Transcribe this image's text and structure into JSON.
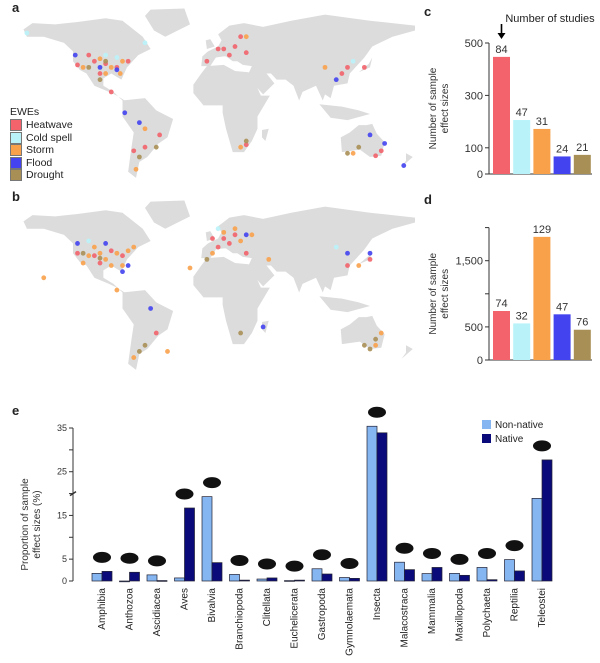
{
  "panels": {
    "a": "a",
    "b": "b",
    "c": "c",
    "d": "d",
    "e": "e"
  },
  "colors": {
    "Heatwave": "#f2636b",
    "Cold spell": "#b9f3f9",
    "Storm": "#f9a14a",
    "Flood": "#4343f0",
    "Drought": "#a88f55",
    "land": "#dcdcdc",
    "Non-native": "#86b6f2",
    "Native": "#0a0a7a"
  },
  "map_legend": {
    "title": "EWEs",
    "items": [
      "Heatwave",
      "Cold spell",
      "Storm",
      "Flood",
      "Drought"
    ]
  },
  "map_a_points": {
    "Heatwave": [
      [
        -120,
        37
      ],
      [
        -105,
        40
      ],
      [
        -95,
        38
      ],
      [
        -85,
        35
      ],
      [
        -75,
        40
      ],
      [
        -110,
        45
      ],
      [
        -100,
        30
      ],
      [
        10,
        50
      ],
      [
        15,
        45
      ],
      [
        -5,
        40
      ],
      [
        25,
        60
      ],
      [
        20,
        52
      ],
      [
        30,
        47
      ],
      [
        120,
        35
      ],
      [
        115,
        30
      ],
      [
        -60,
        -30
      ],
      [
        -47,
        -20
      ],
      [
        150,
        -33
      ],
      [
        145,
        -37
      ],
      [
        30,
        -28
      ],
      [
        -70,
        -33
      ],
      [
        5,
        50
      ],
      [
        135,
        35
      ],
      [
        -90,
        15
      ]
    ],
    "Cold spell": [
      [
        -165,
        63
      ],
      [
        -85,
        43
      ],
      [
        -95,
        45
      ],
      [
        125,
        40
      ],
      [
        -60,
        55
      ]
    ],
    "Storm": [
      [
        -90,
        35
      ],
      [
        -82,
        30
      ],
      [
        -95,
        30
      ],
      [
        -80,
        40
      ],
      [
        -115,
        35
      ],
      [
        -100,
        42
      ],
      [
        -60,
        -15
      ],
      [
        25,
        -30
      ],
      [
        30,
        60
      ],
      [
        125,
        -35
      ],
      [
        -68,
        -48
      ],
      [
        100,
        35
      ]
    ],
    "Flood": [
      [
        -78,
        -2
      ],
      [
        -85,
        33
      ],
      [
        -100,
        35
      ],
      [
        -65,
        -10
      ],
      [
        153,
        -27
      ],
      [
        170,
        -45
      ],
      [
        -122,
        45
      ],
      [
        140,
        -20
      ],
      [
        110,
        25
      ]
    ],
    "Drought": [
      [
        -110,
        35
      ],
      [
        -95,
        40
      ],
      [
        -65,
        -38
      ],
      [
        130,
        -30
      ],
      [
        120,
        -35
      ],
      [
        -50,
        -30
      ],
      [
        30,
        -25
      ],
      [
        -100,
        25
      ]
    ]
  },
  "map_b_points": {
    "Heatwave": [
      [
        -120,
        40
      ],
      [
        -105,
        38
      ],
      [
        -90,
        42
      ],
      [
        -80,
        38
      ],
      [
        10,
        52
      ],
      [
        20,
        55
      ],
      [
        15,
        48
      ],
      [
        5,
        45
      ],
      [
        30,
        40
      ],
      [
        140,
        35
      ],
      [
        -50,
        -25
      ],
      [
        120,
        30
      ],
      [
        0,
        52
      ],
      [
        -100,
        32
      ]
    ],
    "Cold spell": [
      [
        -110,
        50
      ],
      [
        5,
        60
      ],
      [
        110,
        45
      ]
    ],
    "Storm": [
      [
        -95,
        35
      ],
      [
        -85,
        40
      ],
      [
        -100,
        40
      ],
      [
        -110,
        38
      ],
      [
        -90,
        30
      ],
      [
        -80,
        30
      ],
      [
        -75,
        42
      ],
      [
        -70,
        45
      ],
      [
        10,
        57
      ],
      [
        20,
        60
      ],
      [
        25,
        50
      ],
      [
        -20,
        28
      ],
      [
        -150,
        20
      ],
      [
        -40,
        -40
      ],
      [
        -70,
        -45
      ],
      [
        145,
        -35
      ],
      [
        150,
        -25
      ],
      [
        -85,
        10
      ],
      [
        0,
        40
      ],
      [
        35,
        55
      ],
      [
        130,
        30
      ],
      [
        -115,
        32
      ],
      [
        -105,
        45
      ],
      [
        50,
        35
      ]
    ],
    "Flood": [
      [
        -120,
        48
      ],
      [
        -95,
        48
      ],
      [
        -75,
        30
      ],
      [
        30,
        55
      ],
      [
        120,
        40
      ],
      [
        140,
        40
      ],
      [
        45,
        -20
      ],
      [
        -55,
        -5
      ],
      [
        -80,
        25
      ]
    ],
    "Drought": [
      [
        -115,
        40
      ],
      [
        -100,
        36
      ],
      [
        -60,
        -35
      ],
      [
        145,
        -30
      ],
      [
        135,
        -35
      ],
      [
        25,
        -25
      ],
      [
        -5,
        35
      ],
      [
        -65,
        -40
      ],
      [
        140,
        -38
      ]
    ]
  },
  "chart_data": [
    {
      "id": "c",
      "type": "bar",
      "annotation": "Number of studies",
      "ylabel": "Number of sample effect sizes",
      "ylim": [
        0,
        500
      ],
      "yticks": [
        0,
        100,
        300,
        500
      ],
      "categories": [
        "Heatwave",
        "Cold spell",
        "Storm",
        "Flood",
        "Drought"
      ],
      "values": [
        447,
        206,
        172,
        67,
        73
      ],
      "data_labels": [
        "84",
        "47",
        "31",
        "24",
        "21"
      ]
    },
    {
      "id": "d",
      "type": "bar",
      "ylabel": "Number of sample effect sizes",
      "ylim": [
        0,
        2000
      ],
      "yticks": [
        0,
        500,
        1000,
        1500,
        2000
      ],
      "ytick_labels": [
        "0",
        "500",
        "",
        "1,500",
        ""
      ],
      "categories": [
        "Heatwave",
        "Cold spell",
        "Storm",
        "Flood",
        "Drought"
      ],
      "values": [
        740,
        553,
        1860,
        690,
        457
      ],
      "data_labels": [
        "74",
        "32",
        "129",
        "47",
        "76"
      ]
    },
    {
      "id": "e",
      "type": "bar",
      "ylabel": "Proportion of sample effect sizes (%)",
      "ylim": [
        0,
        35
      ],
      "yticks": [
        0,
        5,
        10,
        15,
        20,
        25,
        30,
        35
      ],
      "ytick_labels": [
        "0",
        "5",
        "",
        "15",
        "",
        "25",
        "",
        "35"
      ],
      "legend": "top-right",
      "categories": [
        "Amphibia",
        "Anthozoa",
        "Ascidiacea",
        "Aves",
        "Bivalvia",
        "Branchiopoda",
        "Clitellata",
        "Euchelicerata",
        "Gastropoda",
        "Gymnolaemata",
        "Insecta",
        "Malacostraca",
        "Mammalia",
        "Maxillopoda",
        "Polychaeta",
        "Reptilia",
        "Teleostei"
      ],
      "series": [
        {
          "name": "Non-native",
          "values": [
            1.75,
            0,
            1.4,
            0.7,
            19.3,
            1.5,
            0.45,
            0.1,
            2.8,
            0.8,
            35.4,
            4.3,
            1.7,
            1.75,
            3.1,
            4.9,
            18.9
          ]
        },
        {
          "name": "Native",
          "values": [
            2.2,
            2.0,
            0.1,
            16.7,
            4.2,
            0.2,
            0.7,
            0.2,
            1.6,
            0.6,
            33.9,
            2.6,
            3.1,
            1.3,
            0.3,
            2.3,
            27.7
          ]
        }
      ],
      "silhouettes": [
        "frog-icon",
        "coral-icon",
        "tunicate-icon",
        "bird-icon",
        "clam-icon",
        "water-flea-icon",
        "worm-icon",
        "mite-icon",
        "snail-icon",
        "bryozoan-icon",
        "beetle-icon",
        "shrimp-icon",
        "rodent-icon",
        "copepod-icon",
        "polychaete-icon",
        "lizard-icon",
        "fish-icon"
      ]
    }
  ]
}
